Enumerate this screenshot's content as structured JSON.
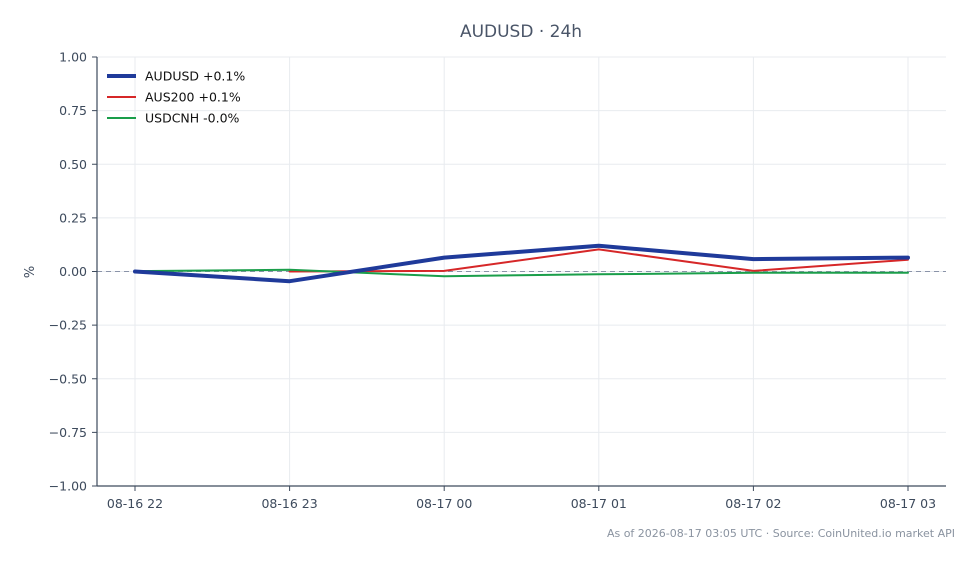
{
  "footnote": "As of 2026-08-17 03:05 UTC · Source: CoinUnited.io market API",
  "chart_data": {
    "type": "line",
    "title": "AUDUSD · 24h",
    "xlabel": "",
    "ylabel": "%",
    "ylim": [
      -1.0,
      1.0
    ],
    "yticks": [
      1.0,
      0.75,
      0.5,
      0.25,
      0.0,
      -0.25,
      -0.5,
      -0.75,
      -1.0
    ],
    "ytick_labels": [
      "1.00",
      "0.75",
      "0.50",
      "0.25",
      "0.00",
      "−0.25",
      "−0.50",
      "−0.75",
      "−1.00"
    ],
    "categories": [
      "08-16 22",
      "08-16 23",
      "08-17 00",
      "08-17 01",
      "08-17 02",
      "08-17 03"
    ],
    "grid": true,
    "zero_line": true,
    "legend_position": "top-left",
    "series": [
      {
        "name": "AUDUSD +0.1%",
        "color": "#1f3a9a",
        "emphasis": true,
        "values": [
          0.0,
          -0.045,
          0.065,
          0.12,
          0.058,
          0.065
        ]
      },
      {
        "name": "AUS200 +0.1%",
        "color": "#d62728",
        "emphasis": false,
        "values": [
          null,
          0.0,
          0.003,
          0.103,
          0.003,
          0.055
        ]
      },
      {
        "name": "USDCNH -0.0%",
        "color": "#1a9e4a",
        "emphasis": false,
        "values": [
          0.002,
          0.008,
          -0.022,
          -0.013,
          -0.006,
          -0.006
        ]
      }
    ]
  }
}
